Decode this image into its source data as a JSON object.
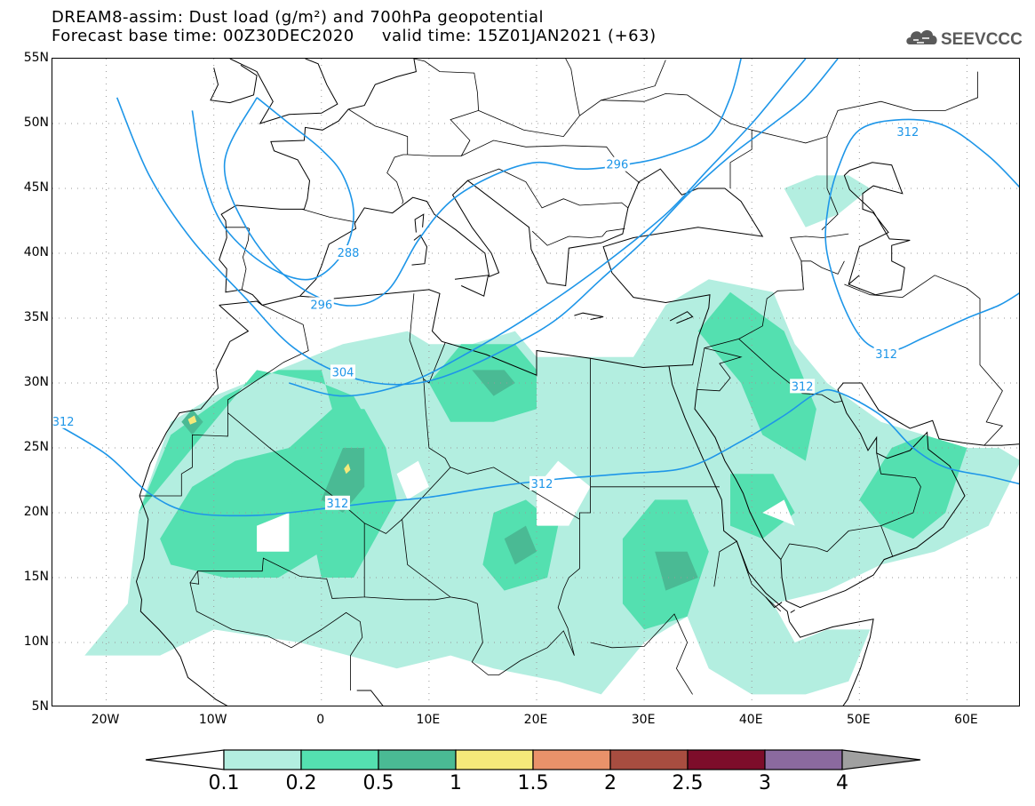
{
  "header": {
    "title_line1": "DREAM8-assim: Dust load (g/m²) and 700hPa geopotential",
    "title_line2": "Forecast base time: 00Z30DEC2020     valid time: 15Z01JAN2021 (+63)",
    "logo_text": "SEEVCCC"
  },
  "map": {
    "lon_range": [
      -25,
      65
    ],
    "lat_range": [
      5,
      55
    ],
    "lat_ticks": [
      "55N",
      "50N",
      "45N",
      "40N",
      "35N",
      "30N",
      "25N",
      "20N",
      "15N",
      "10N",
      "5N"
    ],
    "lon_ticks": [
      "20W",
      "10W",
      "0",
      "10E",
      "20E",
      "30E",
      "40E",
      "50E",
      "60E"
    ],
    "contour_labels": [
      "312",
      "296",
      "288",
      "296",
      "304",
      "312",
      "312",
      "312",
      "312",
      "312"
    ],
    "colors": {
      "coast": "#000000",
      "contour": "#1e96e8",
      "grid": "#9a9a9a"
    }
  },
  "colorbar": {
    "ticks": [
      "0.1",
      "0.2",
      "0.5",
      "1",
      "1.5",
      "2",
      "2.5",
      "3",
      "4"
    ],
    "colors": [
      "#b3eee0",
      "#54e0b0",
      "#4aba94",
      "#f5e97a",
      "#e9926a",
      "#a84d40",
      "#7d0d2a",
      "#8b6a9f"
    ],
    "under_color": "#ffffff",
    "over_color": "#a0a0a0"
  }
}
